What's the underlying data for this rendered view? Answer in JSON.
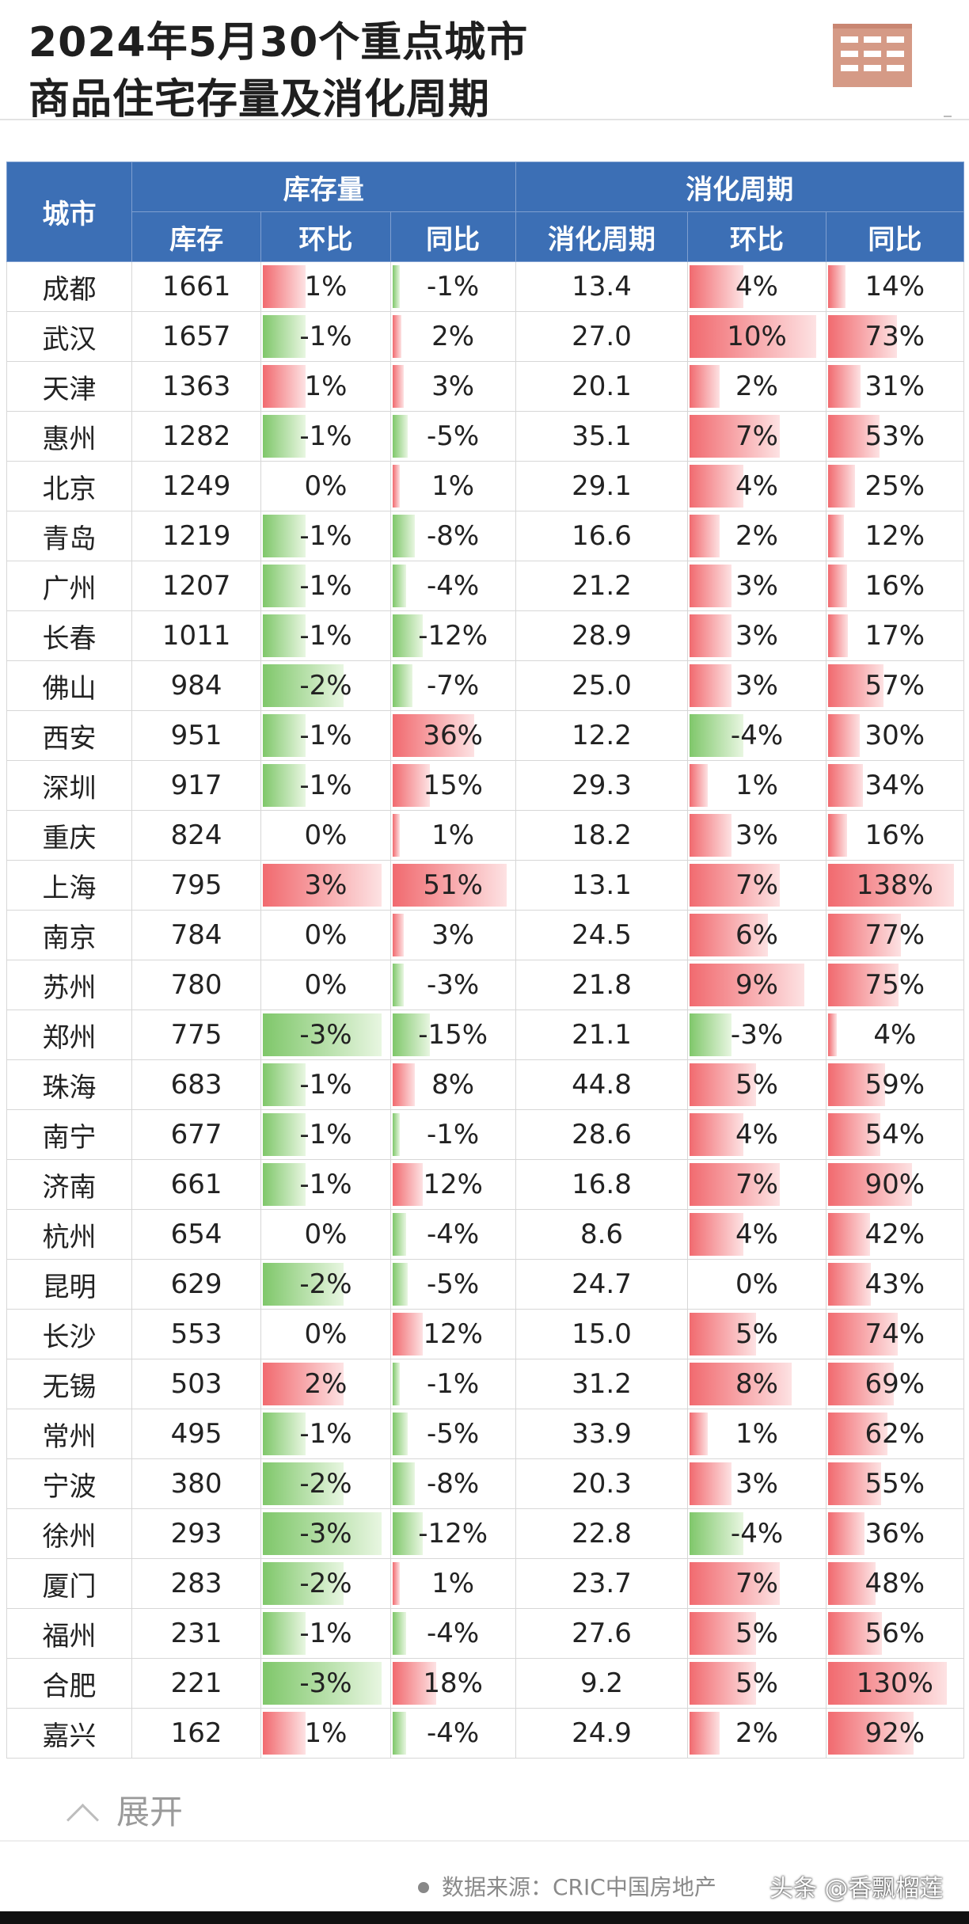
{
  "title": {
    "line1": "2024年5月30个重点城市",
    "line2": "商品住宅存量及消化周期"
  },
  "logo": "building-logo-icon",
  "colors": {
    "header_bg": "#3c6fb5",
    "positive_bar": "#f16a6f",
    "negative_bar": "#7fc76a"
  },
  "table": {
    "group_headers": {
      "city": "城市",
      "inventory": "库存量",
      "cycle": "消化周期"
    },
    "sub_headers": [
      "库存",
      "环比",
      "同比",
      "消化周期",
      "环比",
      "同比"
    ],
    "rows": [
      {
        "city": "成都",
        "stock": "1661",
        "s_mom": "1%",
        "s_yoy": "-1%",
        "cycle": "13.4",
        "c_mom": "4%",
        "c_yoy": "14%"
      },
      {
        "city": "武汉",
        "stock": "1657",
        "s_mom": "-1%",
        "s_yoy": "2%",
        "cycle": "27.0",
        "c_mom": "10%",
        "c_yoy": "73%"
      },
      {
        "city": "天津",
        "stock": "1363",
        "s_mom": "1%",
        "s_yoy": "3%",
        "cycle": "20.1",
        "c_mom": "2%",
        "c_yoy": "31%"
      },
      {
        "city": "惠州",
        "stock": "1282",
        "s_mom": "-1%",
        "s_yoy": "-5%",
        "cycle": "35.1",
        "c_mom": "7%",
        "c_yoy": "53%"
      },
      {
        "city": "北京",
        "stock": "1249",
        "s_mom": "0%",
        "s_yoy": "1%",
        "cycle": "29.1",
        "c_mom": "4%",
        "c_yoy": "25%"
      },
      {
        "city": "青岛",
        "stock": "1219",
        "s_mom": "-1%",
        "s_yoy": "-8%",
        "cycle": "16.6",
        "c_mom": "2%",
        "c_yoy": "12%"
      },
      {
        "city": "广州",
        "stock": "1207",
        "s_mom": "-1%",
        "s_yoy": "-4%",
        "cycle": "21.2",
        "c_mom": "3%",
        "c_yoy": "16%"
      },
      {
        "city": "长春",
        "stock": "1011",
        "s_mom": "-1%",
        "s_yoy": "-12%",
        "cycle": "28.9",
        "c_mom": "3%",
        "c_yoy": "17%"
      },
      {
        "city": "佛山",
        "stock": "984",
        "s_mom": "-2%",
        "s_yoy": "-7%",
        "cycle": "25.0",
        "c_mom": "3%",
        "c_yoy": "57%"
      },
      {
        "city": "西安",
        "stock": "951",
        "s_mom": "-1%",
        "s_yoy": "36%",
        "cycle": "12.2",
        "c_mom": "-4%",
        "c_yoy": "30%"
      },
      {
        "city": "深圳",
        "stock": "917",
        "s_mom": "-1%",
        "s_yoy": "15%",
        "cycle": "29.3",
        "c_mom": "1%",
        "c_yoy": "34%"
      },
      {
        "city": "重庆",
        "stock": "824",
        "s_mom": "0%",
        "s_yoy": "1%",
        "cycle": "18.2",
        "c_mom": "3%",
        "c_yoy": "16%"
      },
      {
        "city": "上海",
        "stock": "795",
        "s_mom": "3%",
        "s_yoy": "51%",
        "cycle": "13.1",
        "c_mom": "7%",
        "c_yoy": "138%"
      },
      {
        "city": "南京",
        "stock": "784",
        "s_mom": "0%",
        "s_yoy": "3%",
        "cycle": "24.5",
        "c_mom": "6%",
        "c_yoy": "77%"
      },
      {
        "city": "苏州",
        "stock": "780",
        "s_mom": "0%",
        "s_yoy": "-3%",
        "cycle": "21.8",
        "c_mom": "9%",
        "c_yoy": "75%"
      },
      {
        "city": "郑州",
        "stock": "775",
        "s_mom": "-3%",
        "s_yoy": "-15%",
        "cycle": "21.1",
        "c_mom": "-3%",
        "c_yoy": "4%"
      },
      {
        "city": "珠海",
        "stock": "683",
        "s_mom": "-1%",
        "s_yoy": "8%",
        "cycle": "44.8",
        "c_mom": "5%",
        "c_yoy": "59%"
      },
      {
        "city": "南宁",
        "stock": "677",
        "s_mom": "-1%",
        "s_yoy": "-1%",
        "cycle": "28.6",
        "c_mom": "4%",
        "c_yoy": "54%"
      },
      {
        "city": "济南",
        "stock": "661",
        "s_mom": "-1%",
        "s_yoy": "12%",
        "cycle": "16.8",
        "c_mom": "7%",
        "c_yoy": "90%"
      },
      {
        "city": "杭州",
        "stock": "654",
        "s_mom": "0%",
        "s_yoy": "-4%",
        "cycle": "8.6",
        "c_mom": "4%",
        "c_yoy": "42%"
      },
      {
        "city": "昆明",
        "stock": "629",
        "s_mom": "-2%",
        "s_yoy": "-5%",
        "cycle": "24.7",
        "c_mom": "0%",
        "c_yoy": "43%"
      },
      {
        "city": "长沙",
        "stock": "553",
        "s_mom": "0%",
        "s_yoy": "12%",
        "cycle": "15.0",
        "c_mom": "5%",
        "c_yoy": "74%"
      },
      {
        "city": "无锡",
        "stock": "503",
        "s_mom": "2%",
        "s_yoy": "-1%",
        "cycle": "31.2",
        "c_mom": "8%",
        "c_yoy": "69%"
      },
      {
        "city": "常州",
        "stock": "495",
        "s_mom": "-1%",
        "s_yoy": "-5%",
        "cycle": "33.9",
        "c_mom": "1%",
        "c_yoy": "62%"
      },
      {
        "city": "宁波",
        "stock": "380",
        "s_mom": "-2%",
        "s_yoy": "-8%",
        "cycle": "20.3",
        "c_mom": "3%",
        "c_yoy": "55%"
      },
      {
        "city": "徐州",
        "stock": "293",
        "s_mom": "-3%",
        "s_yoy": "-12%",
        "cycle": "22.8",
        "c_mom": "-4%",
        "c_yoy": "36%"
      },
      {
        "city": "厦门",
        "stock": "283",
        "s_mom": "-2%",
        "s_yoy": "1%",
        "cycle": "23.7",
        "c_mom": "7%",
        "c_yoy": "48%"
      },
      {
        "city": "福州",
        "stock": "231",
        "s_mom": "-1%",
        "s_yoy": "-4%",
        "cycle": "27.6",
        "c_mom": "5%",
        "c_yoy": "56%"
      },
      {
        "city": "合肥",
        "stock": "221",
        "s_mom": "-3%",
        "s_yoy": "18%",
        "cycle": "9.2",
        "c_mom": "5%",
        "c_yoy": "130%"
      },
      {
        "city": "嘉兴",
        "stock": "162",
        "s_mom": "1%",
        "s_yoy": "-4%",
        "cycle": "24.9",
        "c_mom": "2%",
        "c_yoy": "92%"
      }
    ]
  },
  "footer": {
    "expand_label": "展开",
    "source_text": "数据来源：CRIC中国房地产",
    "watermark": "头条 @香飘榴莲"
  }
}
